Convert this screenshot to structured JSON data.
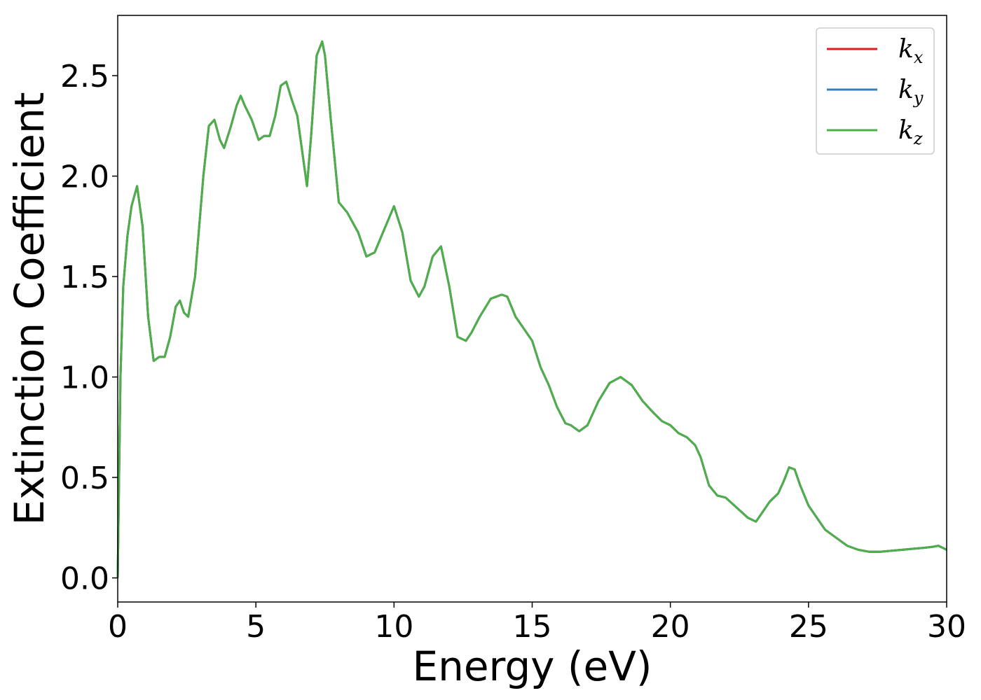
{
  "chart_data": {
    "type": "line",
    "xlabel": "Energy (eV)",
    "ylabel": "Extinction Coefficient",
    "xlim": [
      0,
      30
    ],
    "ylim": [
      -0.12,
      2.8
    ],
    "x_ticks": [
      "0",
      "5",
      "10",
      "15",
      "20",
      "25",
      "30"
    ],
    "y_ticks": [
      "0.0",
      "0.5",
      "1.0",
      "1.5",
      "2.0",
      "2.5"
    ],
    "grid": false,
    "legend_position": "top-right",
    "series": [
      {
        "name": "k_x",
        "legend_base": "k",
        "legend_sub": "x",
        "color": "#e41a1c"
      },
      {
        "name": "k_y",
        "legend_base": "k",
        "legend_sub": "y",
        "color": "#377eb8"
      },
      {
        "name": "k_z",
        "legend_base": "k",
        "legend_sub": "z",
        "color": "#4daf4a"
      }
    ],
    "x": [
      0,
      0.1,
      0.2,
      0.35,
      0.5,
      0.7,
      0.9,
      1.1,
      1.3,
      1.5,
      1.7,
      1.9,
      2.1,
      2.25,
      2.4,
      2.55,
      2.8,
      3.1,
      3.3,
      3.5,
      3.7,
      3.85,
      4.1,
      4.3,
      4.45,
      4.6,
      4.85,
      5.1,
      5.3,
      5.5,
      5.7,
      5.9,
      6.1,
      6.3,
      6.5,
      6.7,
      6.85,
      7.0,
      7.2,
      7.4,
      7.5,
      7.7,
      8.0,
      8.3,
      8.7,
      9.0,
      9.3,
      9.6,
      10.0,
      10.3,
      10.6,
      10.9,
      11.1,
      11.4,
      11.7,
      12.0,
      12.3,
      12.6,
      12.8,
      13.1,
      13.5,
      13.7,
      13.9,
      14.1,
      14.4,
      14.7,
      15.0,
      15.3,
      15.6,
      15.9,
      16.2,
      16.4,
      16.7,
      17.0,
      17.4,
      17.8,
      18.2,
      18.6,
      19.0,
      19.4,
      19.7,
      20.0,
      20.3,
      20.6,
      20.9,
      21.1,
      21.4,
      21.7,
      22.0,
      22.4,
      22.8,
      23.1,
      23.3,
      23.6,
      23.9,
      24.1,
      24.3,
      24.5,
      24.7,
      25.0,
      25.3,
      25.6,
      26.0,
      26.4,
      26.8,
      27.2,
      27.6,
      28.0,
      28.4,
      28.8,
      29.2,
      29.5,
      29.7,
      30.0
    ],
    "values": [
      0.0,
      1.0,
      1.45,
      1.7,
      1.85,
      1.95,
      1.75,
      1.3,
      1.08,
      1.1,
      1.1,
      1.2,
      1.35,
      1.38,
      1.32,
      1.3,
      1.5,
      2.0,
      2.25,
      2.28,
      2.18,
      2.14,
      2.25,
      2.35,
      2.4,
      2.35,
      2.28,
      2.18,
      2.2,
      2.2,
      2.3,
      2.45,
      2.47,
      2.38,
      2.3,
      2.1,
      1.95,
      2.2,
      2.6,
      2.67,
      2.6,
      2.3,
      1.87,
      1.82,
      1.72,
      1.6,
      1.62,
      1.72,
      1.85,
      1.72,
      1.48,
      1.4,
      1.45,
      1.6,
      1.65,
      1.45,
      1.2,
      1.18,
      1.22,
      1.3,
      1.39,
      1.4,
      1.41,
      1.4,
      1.3,
      1.24,
      1.18,
      1.05,
      0.96,
      0.85,
      0.77,
      0.76,
      0.73,
      0.76,
      0.88,
      0.97,
      1.0,
      0.96,
      0.88,
      0.82,
      0.78,
      0.76,
      0.72,
      0.7,
      0.66,
      0.6,
      0.46,
      0.41,
      0.4,
      0.35,
      0.3,
      0.28,
      0.32,
      0.38,
      0.42,
      0.48,
      0.55,
      0.54,
      0.46,
      0.36,
      0.3,
      0.24,
      0.2,
      0.16,
      0.14,
      0.13,
      0.13,
      0.135,
      0.14,
      0.145,
      0.15,
      0.155,
      0.16,
      0.14
    ]
  }
}
